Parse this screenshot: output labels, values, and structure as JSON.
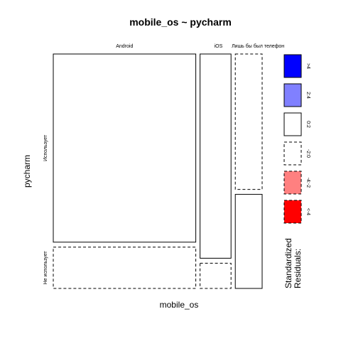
{
  "chart_data": {
    "type": "mosaic",
    "title": "mobile_os ~ pycharm",
    "xlabel": "mobile_os",
    "ylabel": "pycharm",
    "x_categories": [
      "Android",
      "iOS",
      "Лишь бы был телефон"
    ],
    "y_categories": [
      "Использует",
      "Не использует"
    ],
    "column_proportions": [
      0.69,
      0.15,
      0.13
    ],
    "cells": [
      {
        "x": "Android",
        "y": "Использует",
        "proportion": 0.82,
        "residual_class": "0:2"
      },
      {
        "x": "Android",
        "y": "Не использует",
        "proportion": 0.18,
        "residual_class": "-2:0"
      },
      {
        "x": "iOS",
        "y": "Использует",
        "proportion": 0.89,
        "residual_class": "0:2"
      },
      {
        "x": "iOS",
        "y": "Не использует",
        "proportion": 0.11,
        "residual_class": "-2:0"
      },
      {
        "x": "Лишь бы был телефон",
        "y": "Использует",
        "proportion": 0.59,
        "residual_class": "-2:0"
      },
      {
        "x": "Лишь бы был телефон",
        "y": "Не использует",
        "proportion": 0.41,
        "residual_class": "0:2"
      }
    ],
    "legend": {
      "title_line1": "Standardized",
      "title_line2": "Residuals:",
      "entries": [
        {
          "label": ">4",
          "fill": "#0000ff",
          "dashed": false
        },
        {
          "label": "2:4",
          "fill": "#8080ff",
          "dashed": false
        },
        {
          "label": "0:2",
          "fill": "#ffffff",
          "dashed": false
        },
        {
          "label": "-2:0",
          "fill": "#ffffff",
          "dashed": true
        },
        {
          "label": "-4:-2",
          "fill": "#ff8080",
          "dashed": true
        },
        {
          "label": "<-4",
          "fill": "#ff0000",
          "dashed": true
        }
      ],
      "placement": "right"
    }
  }
}
